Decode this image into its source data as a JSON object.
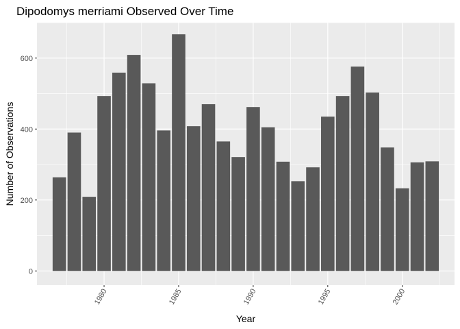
{
  "chart_data": {
    "type": "bar",
    "title": "Dipodomys merriami Observed Over Time",
    "xlabel": "Year",
    "ylabel": "Number of Observations",
    "x": [
      1977,
      1978,
      1979,
      1980,
      1981,
      1982,
      1983,
      1984,
      1985,
      1986,
      1987,
      1988,
      1989,
      1990,
      1991,
      1992,
      1993,
      1994,
      1995,
      1996,
      1997,
      1998,
      1999,
      2000,
      2001,
      2002
    ],
    "values": [
      264,
      390,
      209,
      493,
      559,
      609,
      529,
      396,
      667,
      408,
      470,
      365,
      321,
      462,
      405,
      308,
      253,
      292,
      435,
      493,
      576,
      503,
      348,
      233,
      306,
      309
    ],
    "xlim": [
      1975.5,
      2003.5
    ],
    "ylim": [
      -40,
      700
    ],
    "xticks": [
      "1980",
      "1985",
      "1990",
      "1995",
      "2000"
    ],
    "yticks": [
      "0",
      "200",
      "400",
      "600"
    ],
    "grid": true,
    "bar_color": "#595959",
    "panel_color": "#ebebeb",
    "gridline_color": "#ffffff"
  }
}
